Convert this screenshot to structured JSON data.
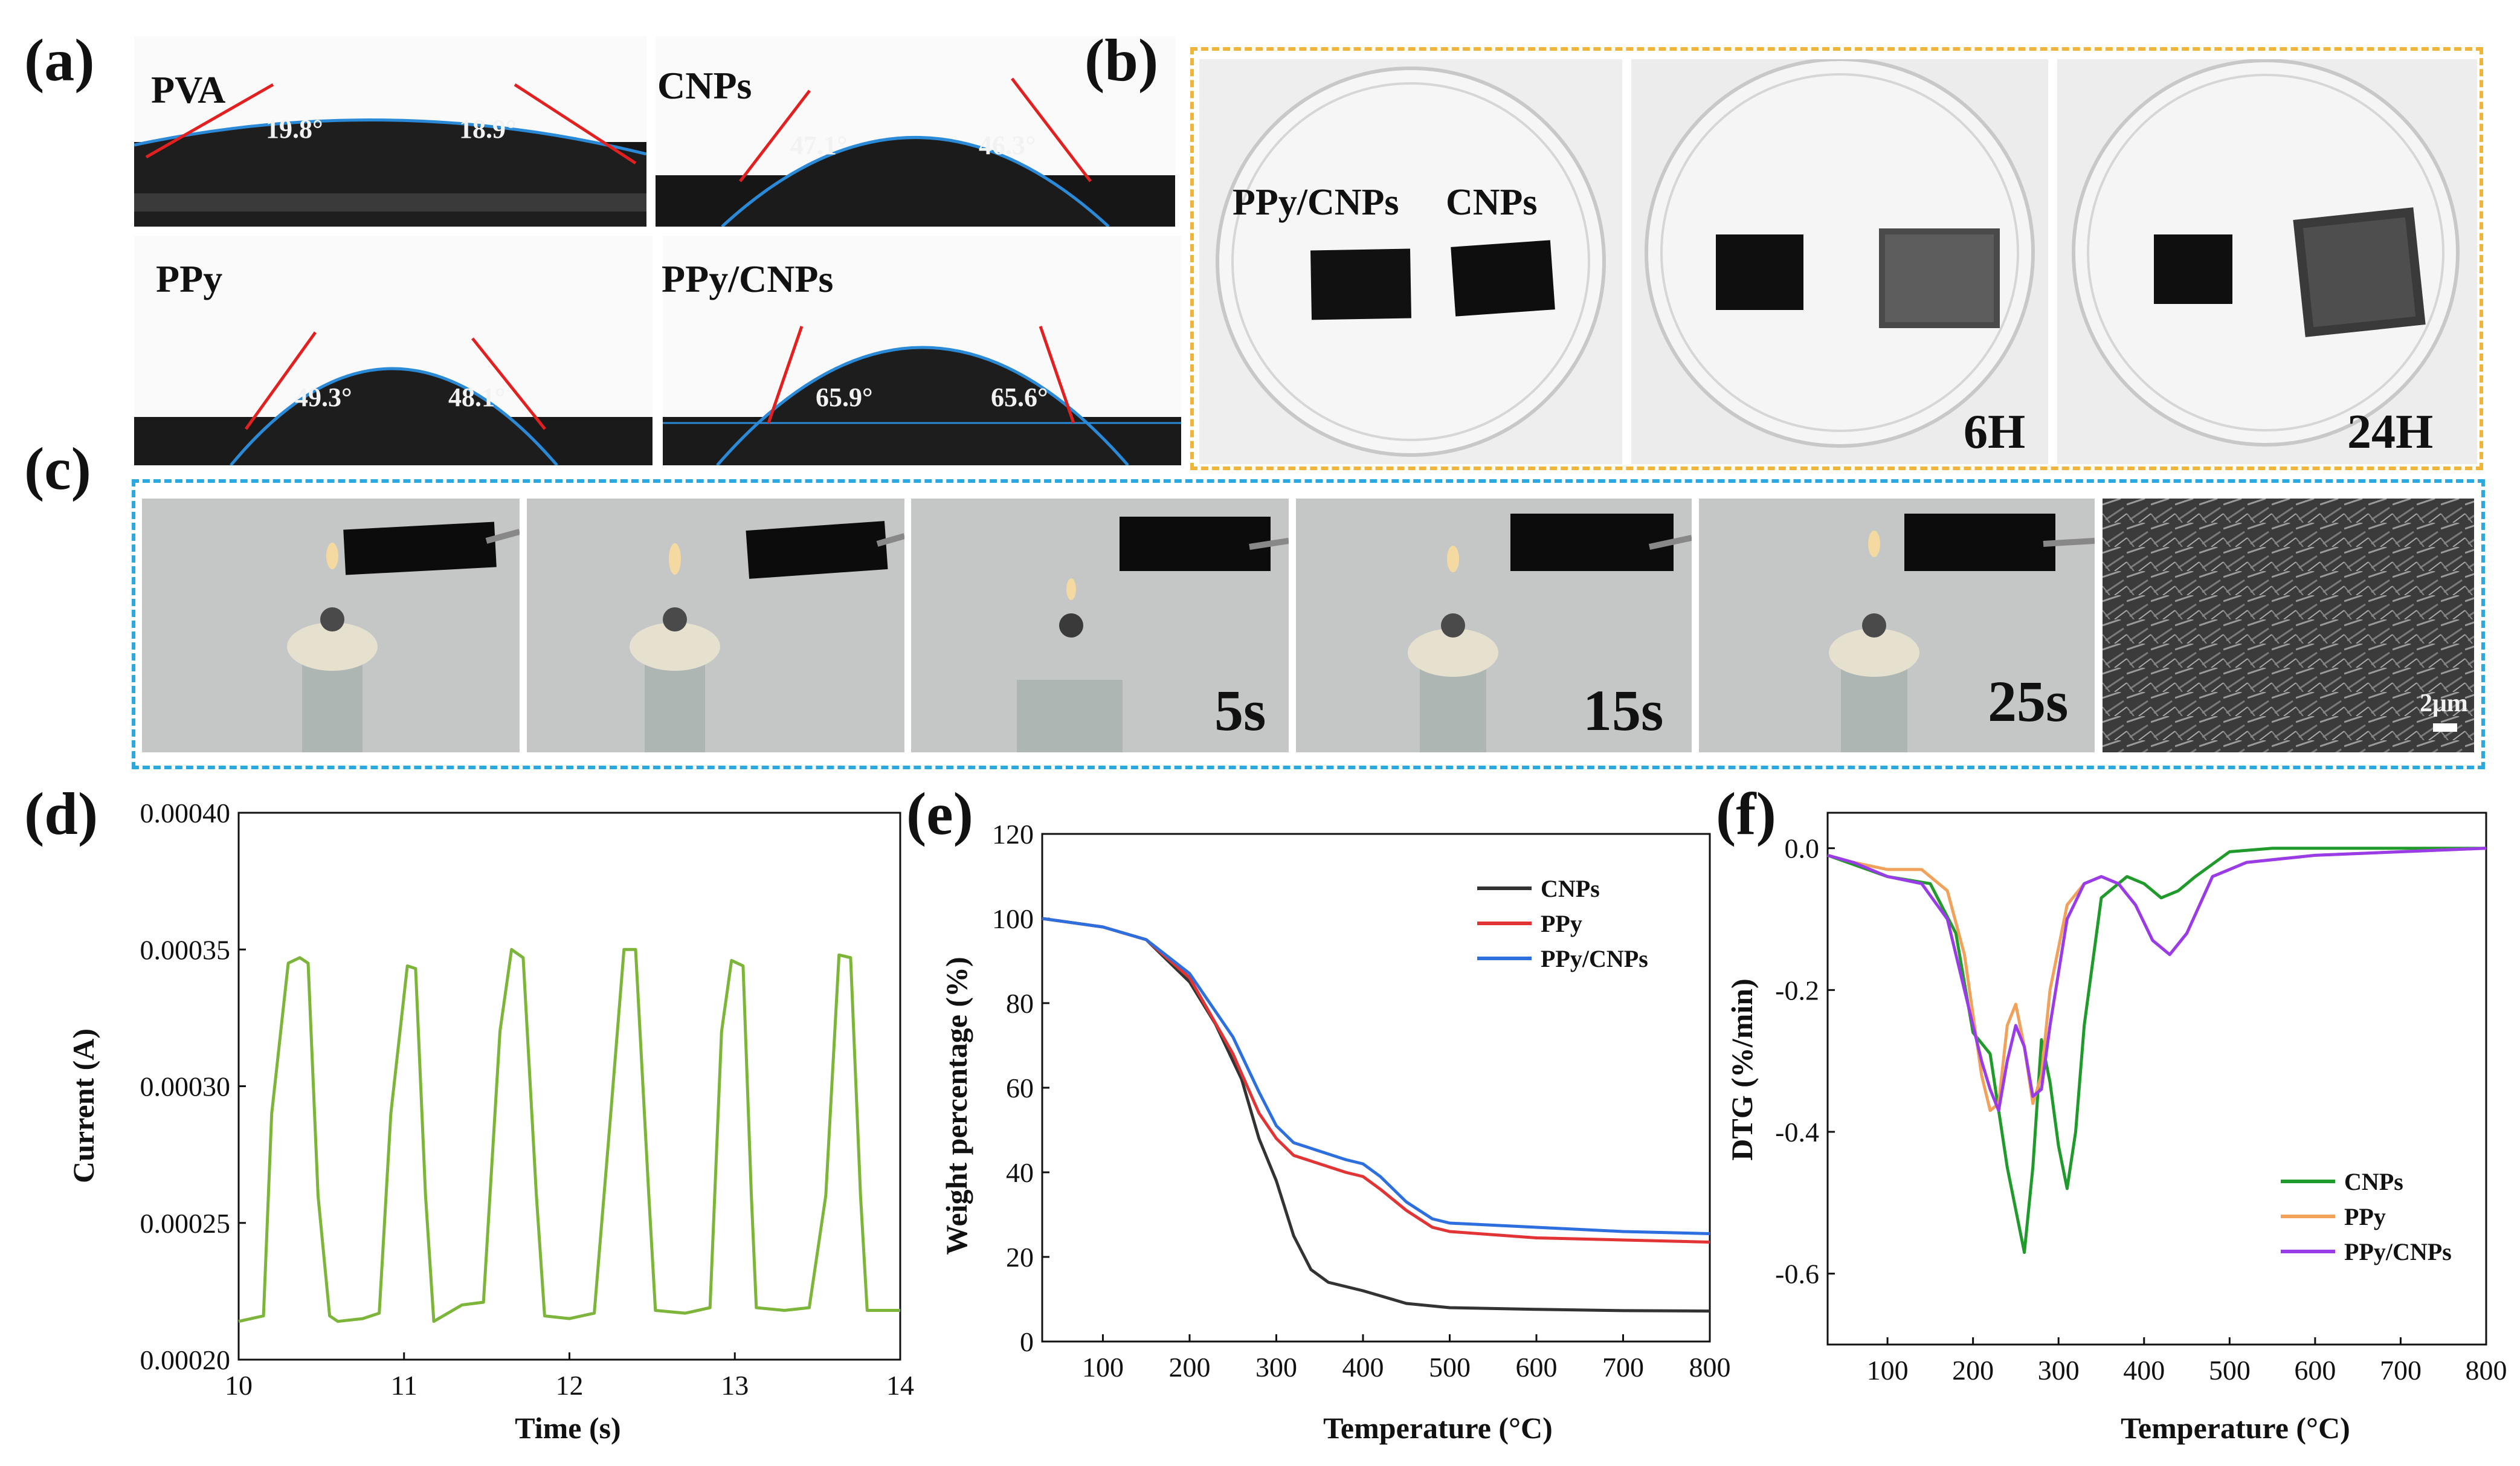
{
  "panels": {
    "a": {
      "label": "(a)",
      "samples": [
        {
          "name": "PVA",
          "left_angle": "19.8°",
          "right_angle": "18.9°"
        },
        {
          "name": "CNPs",
          "left_angle": "47.1°",
          "right_angle": "46.3°"
        },
        {
          "name": "PPy",
          "left_angle": "49.3°",
          "right_angle": "48.1°"
        },
        {
          "name": "PPy/CNPs",
          "left_angle": "65.9°",
          "right_angle": "65.6°"
        }
      ]
    },
    "b": {
      "label": "(b)",
      "sample_labels": [
        "PPy/CNPs",
        "CNPs"
      ],
      "time_labels": [
        "6H",
        "24H"
      ],
      "border_color": "#F0B43A"
    },
    "c": {
      "label": "(c)",
      "time_labels": [
        "5s",
        "15s",
        "25s"
      ],
      "scale_bar": "2μm",
      "border_color": "#2BA8E0"
    }
  },
  "chart_data": [
    {
      "panel": "(d)",
      "type": "line",
      "title": "",
      "xlabel": "Time (s)",
      "ylabel": "Current (A)",
      "xlim": [
        10,
        14
      ],
      "ylim": [
        0.0002,
        0.0004
      ],
      "xticks": [
        "10",
        "11",
        "12",
        "13",
        "14"
      ],
      "yticks": [
        "0.00020",
        "0.00025",
        "0.00030",
        "0.00035",
        "0.00040"
      ],
      "series": [
        {
          "name": "Current",
          "color": "#7DB53A",
          "x": [
            10.0,
            10.15,
            10.2,
            10.3,
            10.37,
            10.42,
            10.48,
            10.55,
            10.6,
            10.75,
            10.85,
            10.92,
            11.02,
            11.07,
            11.13,
            11.18,
            11.35,
            11.48,
            11.58,
            11.65,
            11.72,
            11.8,
            11.85,
            12.0,
            12.15,
            12.25,
            12.33,
            12.4,
            12.48,
            12.52,
            12.7,
            12.85,
            12.92,
            12.98,
            13.05,
            13.1,
            13.13,
            13.3,
            13.45,
            13.55,
            13.63,
            13.7,
            13.76,
            13.8,
            14.0
          ],
          "y": [
            0.000214,
            0.000216,
            0.00029,
            0.000345,
            0.000347,
            0.000345,
            0.00026,
            0.000216,
            0.000214,
            0.000215,
            0.000217,
            0.00029,
            0.000344,
            0.000343,
            0.00026,
            0.000214,
            0.00022,
            0.000221,
            0.00032,
            0.00035,
            0.000347,
            0.00026,
            0.000216,
            0.000215,
            0.000217,
            0.00029,
            0.00035,
            0.00035,
            0.00026,
            0.000218,
            0.000217,
            0.000219,
            0.00032,
            0.000346,
            0.000344,
            0.00026,
            0.000219,
            0.000218,
            0.000219,
            0.00026,
            0.000348,
            0.000347,
            0.00026,
            0.000218,
            0.000218
          ]
        }
      ]
    },
    {
      "panel": "(e)",
      "type": "line",
      "title": "",
      "xlabel": "Temperature (°C)",
      "ylabel": "Weight percentage (%)",
      "xlim": [
        30,
        800
      ],
      "ylim": [
        0,
        120
      ],
      "xticks": [
        "100",
        "200",
        "300",
        "400",
        "500",
        "600",
        "700",
        "800"
      ],
      "yticks": [
        "0",
        "20",
        "40",
        "60",
        "80",
        "100",
        "120"
      ],
      "legend": "top-right",
      "series": [
        {
          "name": "CNPs",
          "color": "#333333",
          "x": [
            30,
            100,
            150,
            200,
            230,
            260,
            280,
            300,
            320,
            340,
            360,
            380,
            400,
            450,
            500,
            600,
            700,
            800
          ],
          "y": [
            100,
            98,
            95,
            85,
            75,
            62,
            48,
            38,
            25,
            17,
            14,
            13,
            12,
            9,
            8,
            7.6,
            7.3,
            7.2
          ]
        },
        {
          "name": "PPy",
          "color": "#E23434",
          "x": [
            30,
            100,
            150,
            200,
            250,
            280,
            300,
            320,
            350,
            380,
            400,
            420,
            450,
            480,
            500,
            600,
            700,
            800
          ],
          "y": [
            100,
            98,
            95,
            86,
            68,
            54,
            48,
            44,
            42,
            40,
            39,
            36,
            31,
            27,
            26,
            24.5,
            24,
            23.5
          ]
        },
        {
          "name": "PPy/CNPs",
          "color": "#2E6FE0",
          "x": [
            30,
            100,
            150,
            200,
            250,
            280,
            300,
            320,
            350,
            380,
            400,
            420,
            450,
            480,
            500,
            600,
            700,
            800
          ],
          "y": [
            100,
            98,
            95,
            87,
            72,
            59,
            51,
            47,
            45,
            43,
            42,
            39,
            33,
            29,
            28,
            27,
            26,
            25.5
          ]
        }
      ]
    },
    {
      "panel": "(f)",
      "type": "line",
      "title": "",
      "xlabel": "Temperature (°C)",
      "ylabel": "DTG (%/min)",
      "xlim": [
        30,
        800
      ],
      "ylim": [
        -0.7,
        0.05
      ],
      "xticks": [
        "100",
        "200",
        "300",
        "400",
        "500",
        "600",
        "700",
        "800"
      ],
      "yticks": [
        "-0.6",
        "-0.4",
        "-0.2",
        "0.0"
      ],
      "legend": "bottom-right",
      "series": [
        {
          "name": "CNPs",
          "color": "#1F9A2B",
          "x": [
            30,
            100,
            150,
            180,
            200,
            220,
            240,
            260,
            270,
            280,
            290,
            300,
            310,
            320,
            330,
            350,
            380,
            400,
            420,
            440,
            460,
            500,
            550,
            600,
            700,
            800
          ],
          "y": [
            -0.01,
            -0.04,
            -0.05,
            -0.12,
            -0.26,
            -0.29,
            -0.45,
            -0.57,
            -0.45,
            -0.27,
            -0.33,
            -0.42,
            -0.48,
            -0.4,
            -0.25,
            -0.07,
            -0.04,
            -0.05,
            -0.07,
            -0.06,
            -0.04,
            -0.005,
            0.0,
            0.0,
            0.0,
            0.0
          ]
        },
        {
          "name": "PPy",
          "color": "#F2A15A",
          "x": [
            30,
            60,
            100,
            140,
            170,
            190,
            210,
            220,
            230,
            240,
            250,
            260,
            270,
            280,
            290,
            310,
            330,
            350,
            370,
            390,
            410,
            430,
            450,
            480,
            520,
            600,
            700,
            800
          ],
          "y": [
            -0.01,
            -0.02,
            -0.03,
            -0.03,
            -0.06,
            -0.15,
            -0.32,
            -0.37,
            -0.36,
            -0.25,
            -0.22,
            -0.28,
            -0.36,
            -0.32,
            -0.2,
            -0.08,
            -0.05,
            -0.04,
            -0.05,
            -0.08,
            -0.13,
            -0.15,
            -0.12,
            -0.04,
            -0.02,
            -0.01,
            -0.005,
            0.0
          ]
        },
        {
          "name": "PPy/CNPs",
          "color": "#9A3BE8",
          "x": [
            30,
            60,
            100,
            140,
            170,
            190,
            210,
            220,
            230,
            240,
            250,
            260,
            270,
            280,
            290,
            310,
            330,
            350,
            370,
            390,
            410,
            430,
            450,
            480,
            520,
            600,
            700,
            800
          ],
          "y": [
            -0.01,
            -0.02,
            -0.04,
            -0.05,
            -0.1,
            -0.2,
            -0.3,
            -0.34,
            -0.37,
            -0.3,
            -0.25,
            -0.28,
            -0.35,
            -0.34,
            -0.25,
            -0.1,
            -0.05,
            -0.04,
            -0.05,
            -0.08,
            -0.13,
            -0.15,
            -0.12,
            -0.04,
            -0.02,
            -0.01,
            -0.005,
            0.0
          ]
        }
      ]
    }
  ]
}
